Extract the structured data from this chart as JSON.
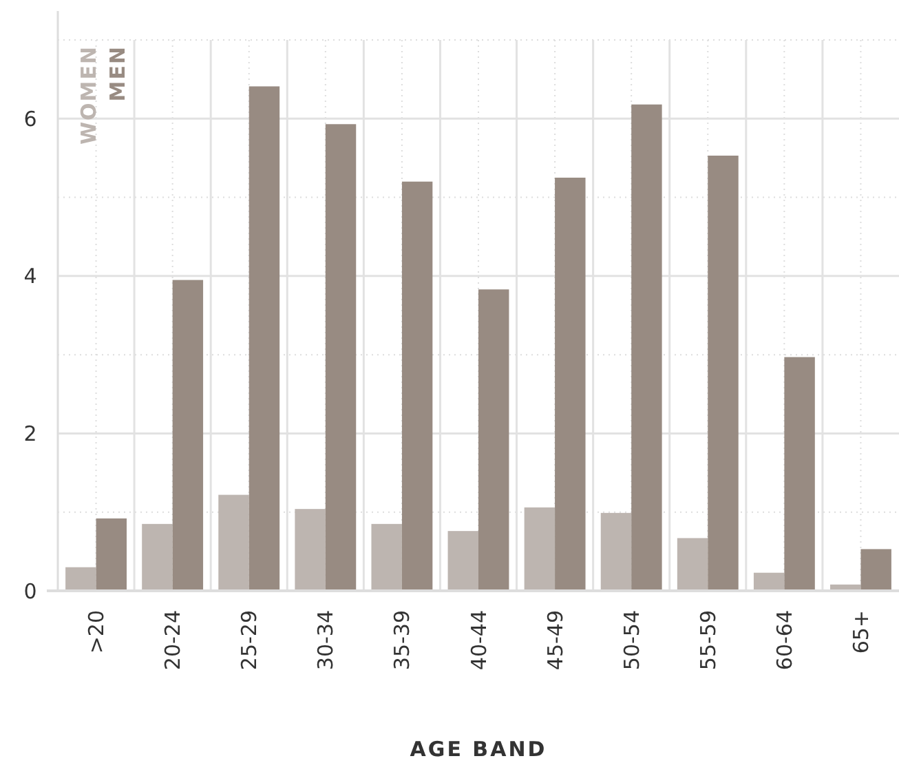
{
  "chart_data": {
    "type": "bar",
    "xlabel": "AGE BAND",
    "categories": [
      ">20",
      "20-24",
      "25-29",
      "30-34",
      "35-39",
      "40-44",
      "45-49",
      "50-54",
      "55-59",
      "60-64",
      "65+"
    ],
    "series": [
      {
        "name": "WOMEN",
        "color": "#bdb5b0",
        "values": [
          0.3,
          0.85,
          1.22,
          1.04,
          0.85,
          0.76,
          1.06,
          0.99,
          0.67,
          0.23,
          0.08
        ]
      },
      {
        "name": "MEN",
        "color": "#988b82",
        "values": [
          0.92,
          3.95,
          6.41,
          5.93,
          5.2,
          3.83,
          5.25,
          6.18,
          5.53,
          2.97,
          0.53
        ]
      }
    ],
    "ylim": [
      0,
      7
    ],
    "yticks": [
      0,
      2,
      4,
      6
    ],
    "grid": true,
    "legend": "top left"
  }
}
